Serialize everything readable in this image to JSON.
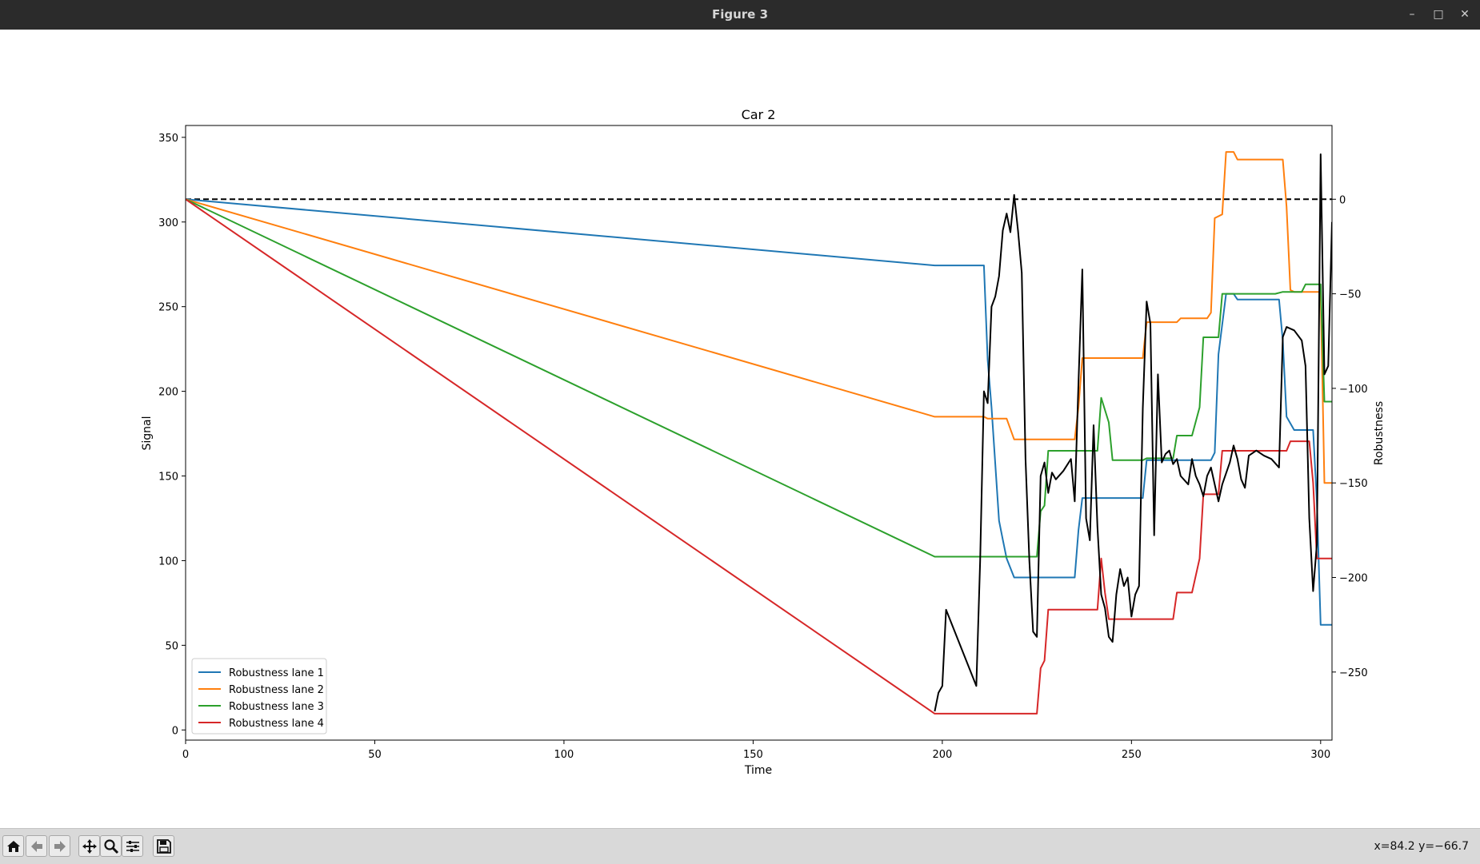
{
  "window": {
    "title": "Figure 3"
  },
  "toolbar": {
    "buttons": [
      "home-icon",
      "back-icon",
      "forward-icon",
      "pan-icon",
      "zoom-icon",
      "configure-icon",
      "save-icon"
    ],
    "coords_text": "x=84.2 y=−66.7"
  },
  "chart_data": {
    "type": "line",
    "title": "Car 2",
    "xlabel": "Time",
    "ylabel": "Signal",
    "y2label": "Robustness",
    "xlim": [
      0,
      303
    ],
    "ylim": [
      -6,
      357
    ],
    "y2lim": [
      -286,
      39
    ],
    "xticks": [
      0,
      50,
      100,
      150,
      200,
      250,
      300
    ],
    "yticks": [
      0,
      50,
      100,
      150,
      200,
      250,
      300,
      350
    ],
    "y2ticks": [
      0,
      -50,
      -100,
      -150,
      -200,
      -250
    ],
    "tick_labels_x": [
      "0",
      "50",
      "100",
      "150",
      "200",
      "250",
      "300"
    ],
    "tick_labels_y": [
      "0",
      "50",
      "100",
      "150",
      "200",
      "250",
      "300",
      "350"
    ],
    "tick_labels_y2": [
      "0",
      "−50",
      "−100",
      "−150",
      "−200",
      "−250"
    ],
    "legend_position": "lower-left",
    "grid": false,
    "reference_line": {
      "axis": "right",
      "value": 0,
      "style": "dashed",
      "color": "#000000"
    },
    "series": [
      {
        "name": "Robustness lane 1",
        "color": "#1f77b4",
        "axis": "right",
        "points": [
          [
            0,
            0
          ],
          [
            198,
            -35
          ],
          [
            211,
            -35
          ],
          [
            212,
            -85
          ],
          [
            213,
            -110
          ],
          [
            214,
            -140
          ],
          [
            215,
            -170
          ],
          [
            216,
            -180
          ],
          [
            217,
            -190
          ],
          [
            219,
            -200
          ],
          [
            235,
            -200
          ],
          [
            236,
            -175
          ],
          [
            237,
            -158
          ],
          [
            253,
            -158
          ],
          [
            254,
            -138
          ],
          [
            271,
            -138
          ],
          [
            272,
            -134
          ],
          [
            273,
            -82
          ],
          [
            275,
            -50
          ],
          [
            277,
            -50
          ],
          [
            278,
            -53
          ],
          [
            289,
            -53
          ],
          [
            290,
            -75
          ],
          [
            291,
            -115
          ],
          [
            293,
            -122
          ],
          [
            298,
            -122
          ],
          [
            299,
            -160
          ],
          [
            300,
            -225
          ],
          [
            303,
            -225
          ]
        ]
      },
      {
        "name": "Robustness lane 2",
        "color": "#ff7f0e",
        "axis": "right",
        "points": [
          [
            0,
            0
          ],
          [
            198,
            -115
          ],
          [
            211,
            -115
          ],
          [
            212,
            -116
          ],
          [
            217,
            -116
          ],
          [
            219,
            -127
          ],
          [
            235,
            -127
          ],
          [
            236,
            -110
          ],
          [
            237,
            -84
          ],
          [
            253,
            -84
          ],
          [
            254,
            -65
          ],
          [
            262,
            -65
          ],
          [
            263,
            -63
          ],
          [
            270,
            -63
          ],
          [
            271,
            -60
          ],
          [
            272,
            -10
          ],
          [
            274,
            -8
          ],
          [
            275,
            25
          ],
          [
            277,
            25
          ],
          [
            278,
            21
          ],
          [
            290,
            21
          ],
          [
            291,
            -4
          ],
          [
            292,
            -48
          ],
          [
            293,
            -49
          ],
          [
            300,
            -49
          ],
          [
            301,
            -150
          ],
          [
            303,
            -150
          ]
        ]
      },
      {
        "name": "Robustness lane 3",
        "color": "#2ca02c",
        "axis": "right",
        "points": [
          [
            0,
            0
          ],
          [
            198,
            -189
          ],
          [
            225,
            -189
          ],
          [
            226,
            -165
          ],
          [
            227,
            -162
          ],
          [
            228,
            -133
          ],
          [
            236,
            -133
          ],
          [
            237,
            -133
          ],
          [
            241,
            -133
          ],
          [
            242,
            -105
          ],
          [
            244,
            -118
          ],
          [
            245,
            -138
          ],
          [
            253,
            -138
          ],
          [
            254,
            -137
          ],
          [
            261,
            -137
          ],
          [
            262,
            -125
          ],
          [
            266,
            -125
          ],
          [
            268,
            -110
          ],
          [
            269,
            -73
          ],
          [
            273,
            -73
          ],
          [
            274,
            -50
          ],
          [
            288,
            -50
          ],
          [
            290,
            -49
          ],
          [
            295,
            -49
          ],
          [
            296,
            -45
          ],
          [
            300,
            -45
          ],
          [
            301,
            -107
          ],
          [
            303,
            -107
          ]
        ]
      },
      {
        "name": "Robustness lane 4",
        "color": "#d62728",
        "axis": "right",
        "points": [
          [
            0,
            0
          ],
          [
            198,
            -272
          ],
          [
            225,
            -272
          ],
          [
            226,
            -248
          ],
          [
            227,
            -244
          ],
          [
            228,
            -217
          ],
          [
            241,
            -217
          ],
          [
            242,
            -190
          ],
          [
            243,
            -208
          ],
          [
            244,
            -222
          ],
          [
            261,
            -222
          ],
          [
            262,
            -208
          ],
          [
            266,
            -208
          ],
          [
            268,
            -190
          ],
          [
            269,
            -156
          ],
          [
            273,
            -156
          ],
          [
            274,
            -133
          ],
          [
            291,
            -133
          ],
          [
            292,
            -128
          ],
          [
            297,
            -128
          ],
          [
            298,
            -150
          ],
          [
            299,
            -190
          ],
          [
            303,
            -190
          ]
        ]
      },
      {
        "name": "",
        "color": "#000000",
        "axis": "left",
        "points": [
          [
            198,
            11
          ],
          [
            199,
            22
          ],
          [
            200,
            26
          ],
          [
            201,
            71
          ],
          [
            209,
            26
          ],
          [
            210,
            100
          ],
          [
            211,
            200
          ],
          [
            212,
            193
          ],
          [
            213,
            250
          ],
          [
            214,
            256
          ],
          [
            215,
            268
          ],
          [
            216,
            295
          ],
          [
            217,
            305
          ],
          [
            218,
            294
          ],
          [
            219,
            316
          ],
          [
            220,
            295
          ],
          [
            221,
            270
          ],
          [
            222,
            160
          ],
          [
            223,
            100
          ],
          [
            224,
            58
          ],
          [
            225,
            55
          ],
          [
            226,
            150
          ],
          [
            227,
            158
          ],
          [
            228,
            140
          ],
          [
            229,
            152
          ],
          [
            230,
            148
          ],
          [
            232,
            153
          ],
          [
            234,
            160
          ],
          [
            235,
            135
          ],
          [
            236,
            205
          ],
          [
            237,
            272
          ],
          [
            238,
            125
          ],
          [
            239,
            112
          ],
          [
            240,
            180
          ],
          [
            241,
            120
          ],
          [
            242,
            80
          ],
          [
            243,
            72
          ],
          [
            244,
            55
          ],
          [
            245,
            52
          ],
          [
            246,
            80
          ],
          [
            247,
            95
          ],
          [
            248,
            85
          ],
          [
            249,
            90
          ],
          [
            250,
            67
          ],
          [
            251,
            80
          ],
          [
            252,
            85
          ],
          [
            253,
            190
          ],
          [
            254,
            253
          ],
          [
            255,
            240
          ],
          [
            256,
            115
          ],
          [
            257,
            210
          ],
          [
            258,
            158
          ],
          [
            259,
            163
          ],
          [
            260,
            165
          ],
          [
            261,
            157
          ],
          [
            262,
            160
          ],
          [
            263,
            150
          ],
          [
            265,
            145
          ],
          [
            266,
            160
          ],
          [
            267,
            150
          ],
          [
            268,
            145
          ],
          [
            269,
            138
          ],
          [
            270,
            150
          ],
          [
            271,
            155
          ],
          [
            273,
            135
          ],
          [
            274,
            145
          ],
          [
            276,
            158
          ],
          [
            277,
            168
          ],
          [
            278,
            160
          ],
          [
            279,
            148
          ],
          [
            280,
            143
          ],
          [
            281,
            162
          ],
          [
            283,
            165
          ],
          [
            285,
            162
          ],
          [
            287,
            160
          ],
          [
            289,
            155
          ],
          [
            290,
            232
          ],
          [
            291,
            238
          ],
          [
            293,
            236
          ],
          [
            295,
            230
          ],
          [
            296,
            215
          ],
          [
            297,
            125
          ],
          [
            298,
            82
          ],
          [
            299,
            110
          ],
          [
            300,
            340
          ],
          [
            301,
            210
          ],
          [
            302,
            215
          ],
          [
            303,
            300
          ]
        ]
      }
    ]
  }
}
